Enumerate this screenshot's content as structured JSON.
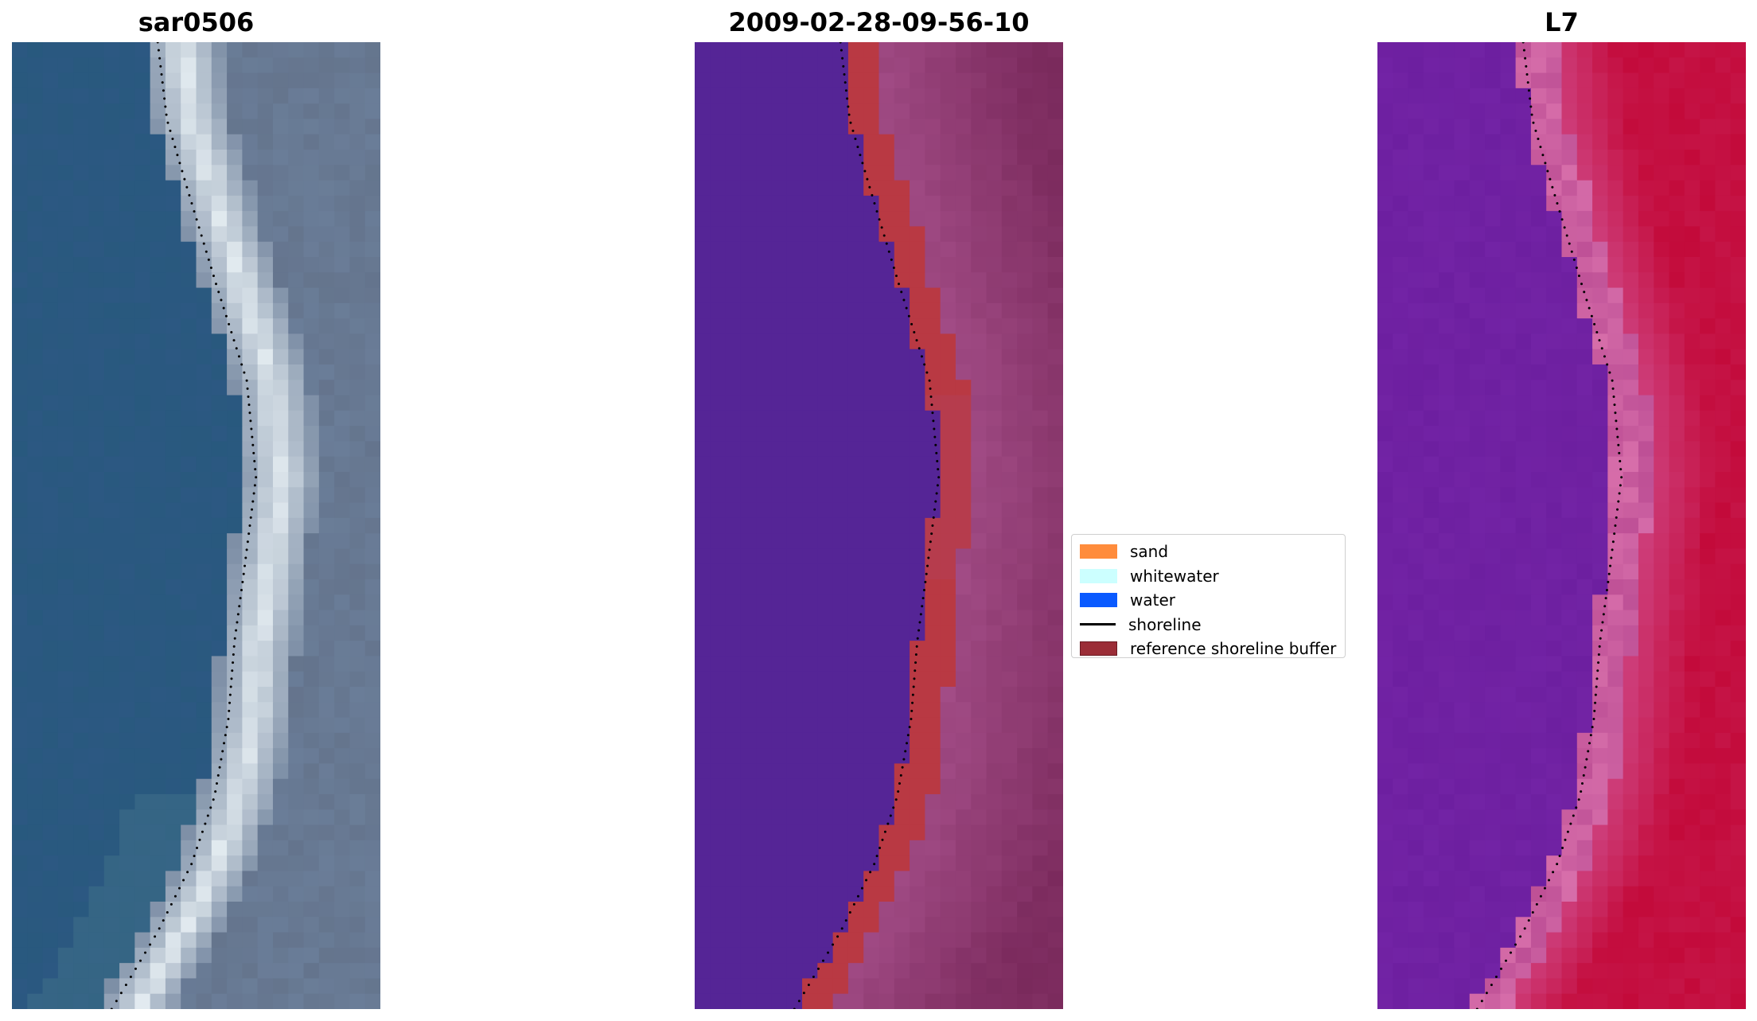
{
  "panels": [
    {
      "title": "sar0506",
      "kind": "rgb"
    },
    {
      "title": "2009-02-28-09-56-10",
      "kind": "classification"
    },
    {
      "title": "L7",
      "kind": "index"
    }
  ],
  "legend": {
    "items": [
      {
        "label": "sand",
        "type": "patch",
        "color": "#ff8c3c"
      },
      {
        "label": "whitewater",
        "type": "patch",
        "color": "#ccffff"
      },
      {
        "label": "water",
        "type": "patch",
        "color": "#0a5aff"
      },
      {
        "label": "shoreline",
        "type": "line",
        "color": "#000000"
      },
      {
        "label": "reference shoreline buffer",
        "type": "patch",
        "color": "#9b2d37"
      }
    ]
  },
  "colors": {
    "water_rgb": "#2c5882",
    "whitewater_rgb": "#e8f0f4",
    "land_rgb": "#6a7d98",
    "class_water": "#552596",
    "class_buffer": "#b93943",
    "class_land": "#a24c86",
    "index_water": "#6d1fa0",
    "index_land": "#c30a3a",
    "shoreline": "#000000"
  }
}
